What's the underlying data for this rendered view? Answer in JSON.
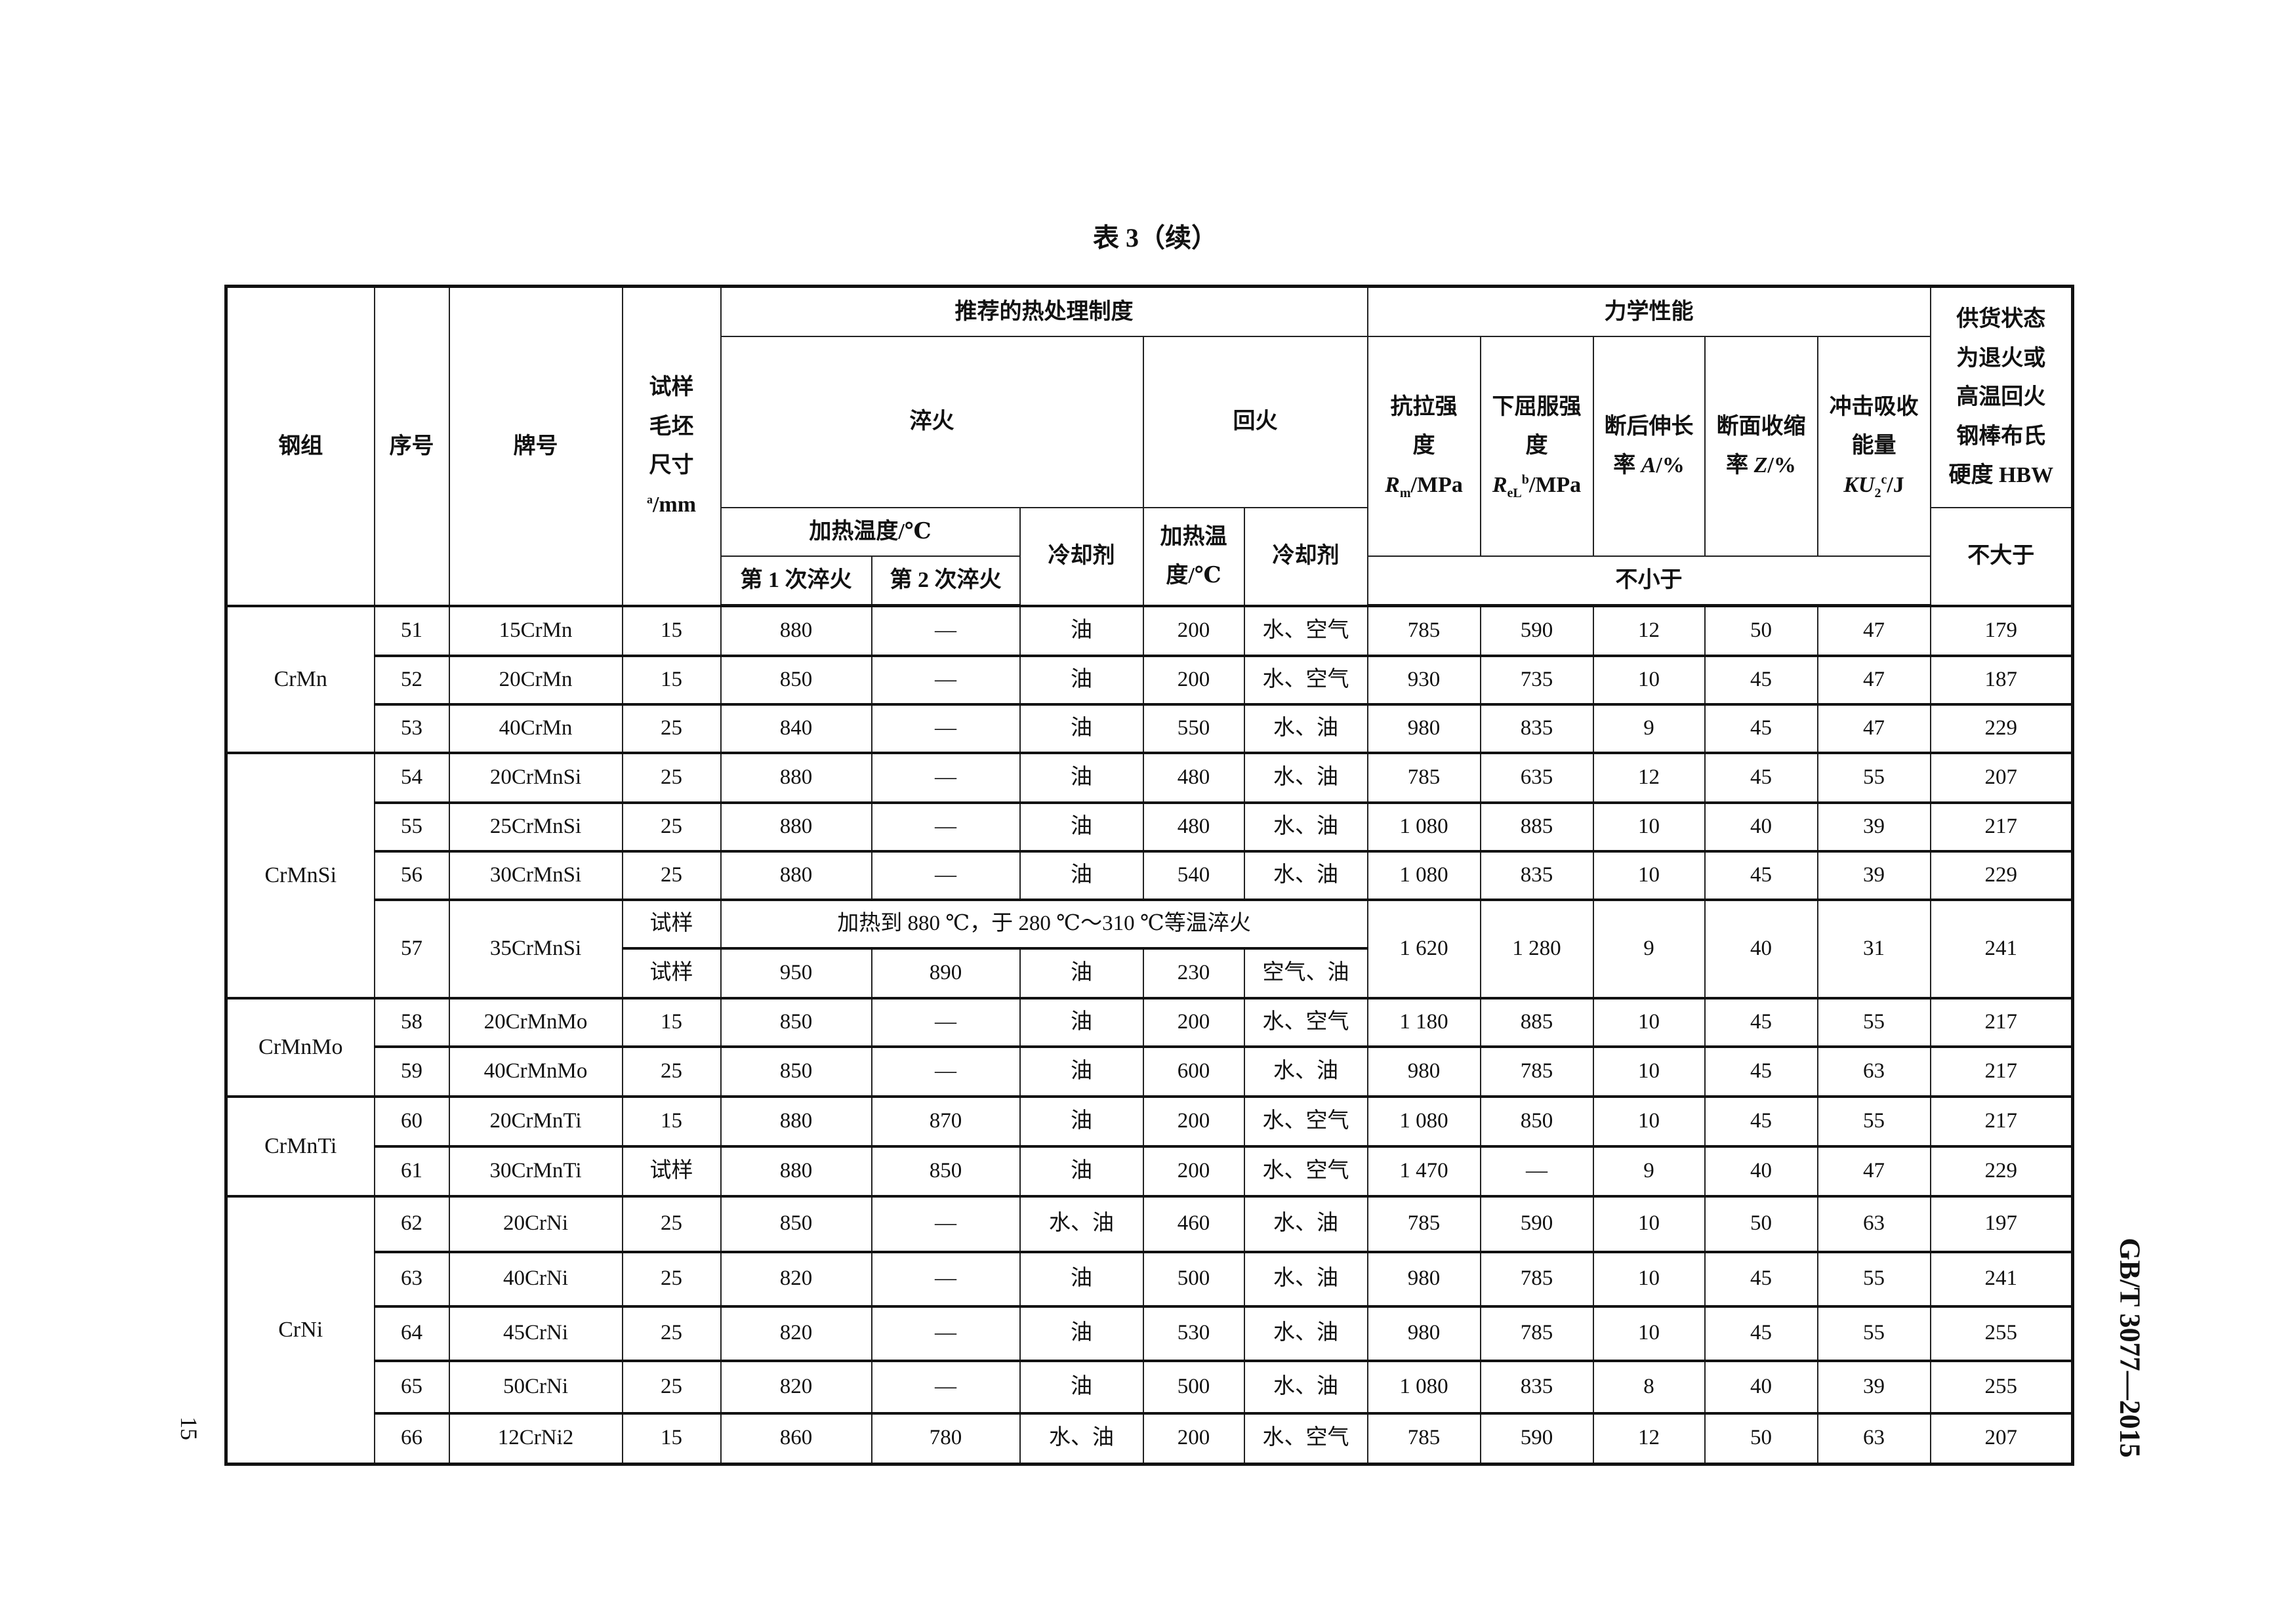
{
  "title": "表 3（续）",
  "standard_code": "GB/T 3077—2015",
  "page_number": "15",
  "header": {
    "steel_group": "钢组",
    "serial_no": "序号",
    "grade": "牌号",
    "specimen_size": {
      "text": "试样毛坯尺寸",
      "sup": "a",
      "unit": "/mm"
    },
    "heat_treatment": "推荐的热处理制度",
    "quenching": "淬火",
    "tempering": "回火",
    "quench_heating_temp": "加热温度/℃",
    "first_quench": "第 1 次淬火",
    "second_quench": "第 2 次淬火",
    "quench_coolant": "冷却剂",
    "temper_heating_temp": "加热温度/℃",
    "temper_coolant": "冷却剂",
    "mechanical_properties": "力学性能",
    "tensile_strength": {
      "text": "抗拉强度 ",
      "sym": "R",
      "sub": "m",
      "unit": "/MPa"
    },
    "yield_strength": {
      "text": "下屈服强度 ",
      "sym": "R",
      "sub": "eL",
      "sup": "b",
      "unit": "/MPa"
    },
    "elongation": {
      "text": "断后伸长率 ",
      "sym": "A",
      "unit": "/%"
    },
    "reduction_of_area": {
      "text": "断面收缩率 ",
      "sym": "Z",
      "unit": "/%"
    },
    "impact_energy": {
      "text": "冲击吸收能量 ",
      "sym": "KU",
      "sub": "2",
      "sup": "c",
      "unit": "/J"
    },
    "not_less_than": "不小于",
    "hardness": "供货状态为退火或高温回火钢棒布氏硬度 HBW",
    "not_more_than": "不大于"
  },
  "groups": [
    {
      "name": "CrMn",
      "rows": [
        {
          "no": "51",
          "grade": "15CrMn",
          "size": "15",
          "q1": "880",
          "q2": "—",
          "qc": "油",
          "tt": "200",
          "tc": "水、空气",
          "rm": "785",
          "rel": "590",
          "a": "12",
          "z": "50",
          "ku": "47",
          "hbw": "179"
        },
        {
          "no": "52",
          "grade": "20CrMn",
          "size": "15",
          "q1": "850",
          "q2": "—",
          "qc": "油",
          "tt": "200",
          "tc": "水、空气",
          "rm": "930",
          "rel": "735",
          "a": "10",
          "z": "45",
          "ku": "47",
          "hbw": "187"
        },
        {
          "no": "53",
          "grade": "40CrMn",
          "size": "25",
          "q1": "840",
          "q2": "—",
          "qc": "油",
          "tt": "550",
          "tc": "水、油",
          "rm": "980",
          "rel": "835",
          "a": "9",
          "z": "45",
          "ku": "47",
          "hbw": "229"
        }
      ]
    },
    {
      "name": "CrMnSi",
      "rows": [
        {
          "no": "54",
          "grade": "20CrMnSi",
          "size": "25",
          "q1": "880",
          "q2": "—",
          "qc": "油",
          "tt": "480",
          "tc": "水、油",
          "rm": "785",
          "rel": "635",
          "a": "12",
          "z": "45",
          "ku": "55",
          "hbw": "207"
        },
        {
          "no": "55",
          "grade": "25CrMnSi",
          "size": "25",
          "q1": "880",
          "q2": "—",
          "qc": "油",
          "tt": "480",
          "tc": "水、油",
          "rm": "1 080",
          "rel": "885",
          "a": "10",
          "z": "40",
          "ku": "39",
          "hbw": "217"
        },
        {
          "no": "56",
          "grade": "30CrMnSi",
          "size": "25",
          "q1": "880",
          "q2": "—",
          "qc": "油",
          "tt": "540",
          "tc": "水、油",
          "rm": "1 080",
          "rel": "835",
          "a": "10",
          "z": "45",
          "ku": "39",
          "hbw": "229"
        },
        {
          "no": "57",
          "grade": "35CrMnSi",
          "size": "试样",
          "note": "加热到 880 ℃，于 280 ℃～310 ℃等温淬火",
          "sub": {
            "size": "试样",
            "q1": "950",
            "q2": "890",
            "qc": "油",
            "tt": "230",
            "tc": "空气、油"
          },
          "rm": "1 620",
          "rel": "1 280",
          "a": "9",
          "z": "40",
          "ku": "31",
          "hbw": "241"
        }
      ]
    },
    {
      "name": "CrMnMo",
      "rows": [
        {
          "no": "58",
          "grade": "20CrMnMo",
          "size": "15",
          "q1": "850",
          "q2": "—",
          "qc": "油",
          "tt": "200",
          "tc": "水、空气",
          "rm": "1 180",
          "rel": "885",
          "a": "10",
          "z": "45",
          "ku": "55",
          "hbw": "217"
        },
        {
          "no": "59",
          "grade": "40CrMnMo",
          "size": "25",
          "q1": "850",
          "q2": "—",
          "qc": "油",
          "tt": "600",
          "tc": "水、油",
          "rm": "980",
          "rel": "785",
          "a": "10",
          "z": "45",
          "ku": "63",
          "hbw": "217"
        }
      ]
    },
    {
      "name": "CrMnTi",
      "rows": [
        {
          "no": "60",
          "grade": "20CrMnTi",
          "size": "15",
          "q1": "880",
          "q2": "870",
          "qc": "油",
          "tt": "200",
          "tc": "水、空气",
          "rm": "1 080",
          "rel": "850",
          "a": "10",
          "z": "45",
          "ku": "55",
          "hbw": "217"
        },
        {
          "no": "61",
          "grade": "30CrMnTi",
          "size": "试样",
          "q1": "880",
          "q2": "850",
          "qc": "油",
          "tt": "200",
          "tc": "水、空气",
          "rm": "1 470",
          "rel": "—",
          "a": "9",
          "z": "40",
          "ku": "47",
          "hbw": "229"
        }
      ]
    },
    {
      "name": "CrNi",
      "rows": [
        {
          "no": "62",
          "grade": "20CrNi",
          "size": "25",
          "q1": "850",
          "q2": "—",
          "qc": "水、油",
          "tt": "460",
          "tc": "水、油",
          "rm": "785",
          "rel": "590",
          "a": "10",
          "z": "50",
          "ku": "63",
          "hbw": "197"
        },
        {
          "no": "63",
          "grade": "40CrNi",
          "size": "25",
          "q1": "820",
          "q2": "—",
          "qc": "油",
          "tt": "500",
          "tc": "水、油",
          "rm": "980",
          "rel": "785",
          "a": "10",
          "z": "45",
          "ku": "55",
          "hbw": "241"
        },
        {
          "no": "64",
          "grade": "45CrNi",
          "size": "25",
          "q1": "820",
          "q2": "—",
          "qc": "油",
          "tt": "530",
          "tc": "水、油",
          "rm": "980",
          "rel": "785",
          "a": "10",
          "z": "45",
          "ku": "55",
          "hbw": "255"
        },
        {
          "no": "65",
          "grade": "50CrNi",
          "size": "25",
          "q1": "820",
          "q2": "—",
          "qc": "油",
          "tt": "500",
          "tc": "水、油",
          "rm": "1 080",
          "rel": "835",
          "a": "8",
          "z": "40",
          "ku": "39",
          "hbw": "255"
        },
        {
          "no": "66",
          "grade": "12CrNi2",
          "size": "15",
          "q1": "860",
          "q2": "780",
          "qc": "水、油",
          "tt": "200",
          "tc": "水、空气",
          "rm": "785",
          "rel": "590",
          "a": "12",
          "z": "50",
          "ku": "63",
          "hbw": "207"
        }
      ]
    }
  ]
}
